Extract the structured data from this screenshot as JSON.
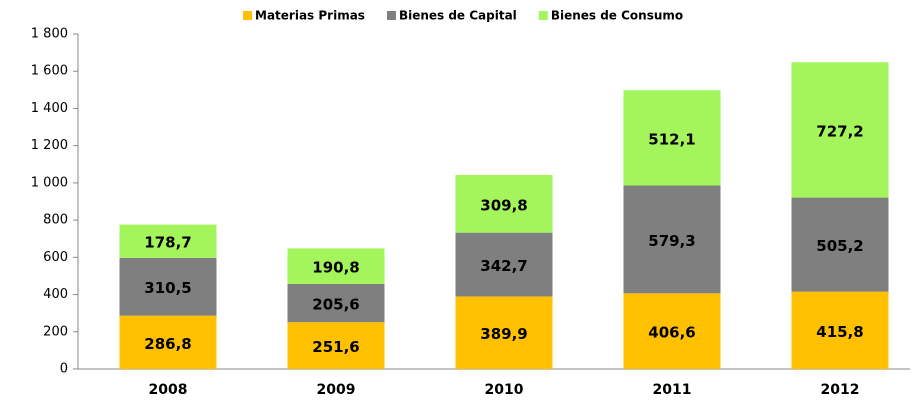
{
  "chart_data": {
    "type": "stacked_bar",
    "categories": [
      "2008",
      "2009",
      "2010",
      "2011",
      "2012"
    ],
    "series": [
      {
        "name": "Materias Primas",
        "color": "#ffc000",
        "values": [
          286.8,
          251.6,
          389.9,
          406.6,
          415.8
        ],
        "value_labels": [
          "286,8",
          "251,6",
          "389,9",
          "406,6",
          "415,8"
        ]
      },
      {
        "name": "Bienes de Capital",
        "color": "#7f7f7f",
        "values": [
          310.5,
          205.6,
          342.7,
          579.3,
          505.2
        ],
        "value_labels": [
          "310,5",
          "205,6",
          "342,7",
          "579,3",
          "505,2"
        ]
      },
      {
        "name": "Bienes de Consumo",
        "color": "#a4f55c",
        "values": [
          178.7,
          190.8,
          309.8,
          512.1,
          727.2
        ],
        "value_labels": [
          "178,7",
          "190,8",
          "309,8",
          "512,1",
          "727,2"
        ]
      }
    ],
    "ylim": [
      0,
      1800
    ],
    "yticks": [
      0,
      200,
      400,
      600,
      800,
      {
        "value": 1000,
        "label": "1 000"
      },
      {
        "value": 1200,
        "label": "1 200"
      },
      {
        "value": 1400,
        "label": "1 400"
      },
      {
        "value": 1600,
        "label": "1 600"
      },
      {
        "value": 1800,
        "label": "1 800"
      }
    ],
    "legend": "top"
  }
}
